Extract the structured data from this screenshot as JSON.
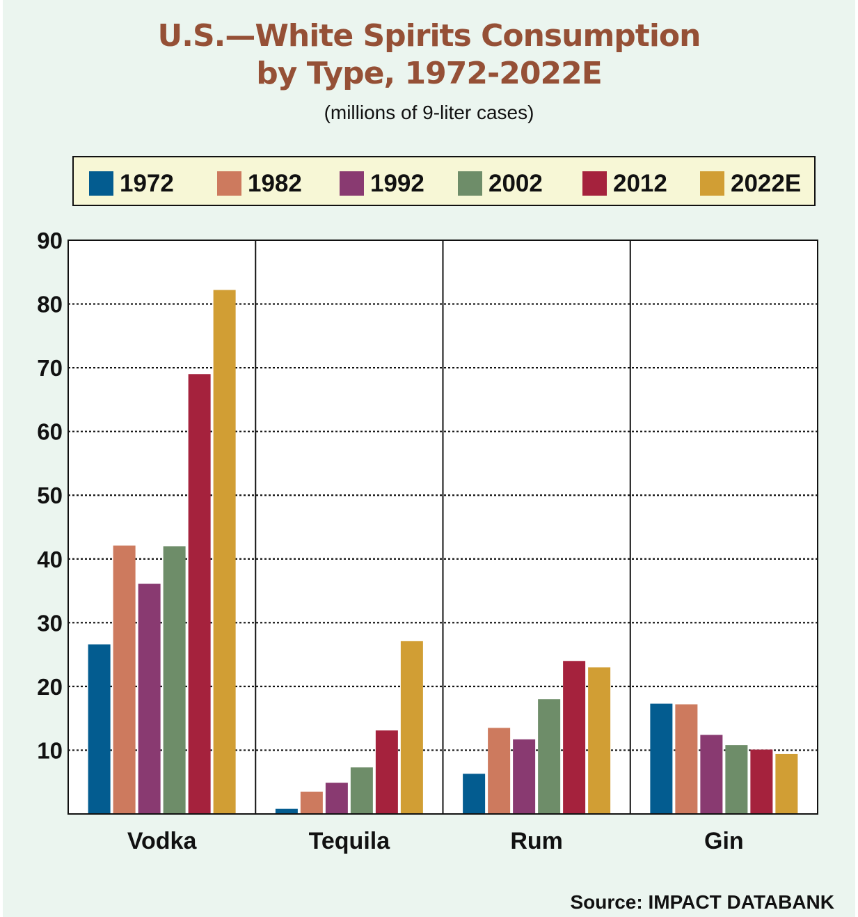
{
  "chart_data": {
    "type": "bar",
    "title": [
      "U.S.—White Spirits Consumption",
      "by Type, 1972-2022E"
    ],
    "subtitle": "(millions of 9-liter cases)",
    "source": "Source: IMPACT DATABANK",
    "categories": [
      "Vodka",
      "Tequila",
      "Rum",
      "Gin"
    ],
    "ylim": [
      0,
      90
    ],
    "yticks": [
      10,
      20,
      30,
      40,
      50,
      60,
      70,
      80,
      90
    ],
    "grid": "dotted horizontal",
    "legend_placement": "top",
    "series": [
      {
        "name": "1972",
        "color": "#035c90",
        "values": [
          26.6,
          0.8,
          6.3,
          17.3
        ]
      },
      {
        "name": "1982",
        "color": "#cd7a5e",
        "values": [
          42.1,
          3.5,
          13.5,
          17.2
        ]
      },
      {
        "name": "1992",
        "color": "#893a71",
        "values": [
          36.1,
          4.9,
          11.7,
          12.4
        ]
      },
      {
        "name": "2002",
        "color": "#6e8d69",
        "values": [
          42.0,
          7.3,
          18.0,
          10.8
        ]
      },
      {
        "name": "2012",
        "color": "#a5223d",
        "values": [
          69.0,
          13.1,
          24.0,
          10.1
        ]
      },
      {
        "name": "2022E",
        "color": "#d19e34",
        "values": [
          82.2,
          27.1,
          23.0,
          9.4
        ]
      }
    ]
  }
}
